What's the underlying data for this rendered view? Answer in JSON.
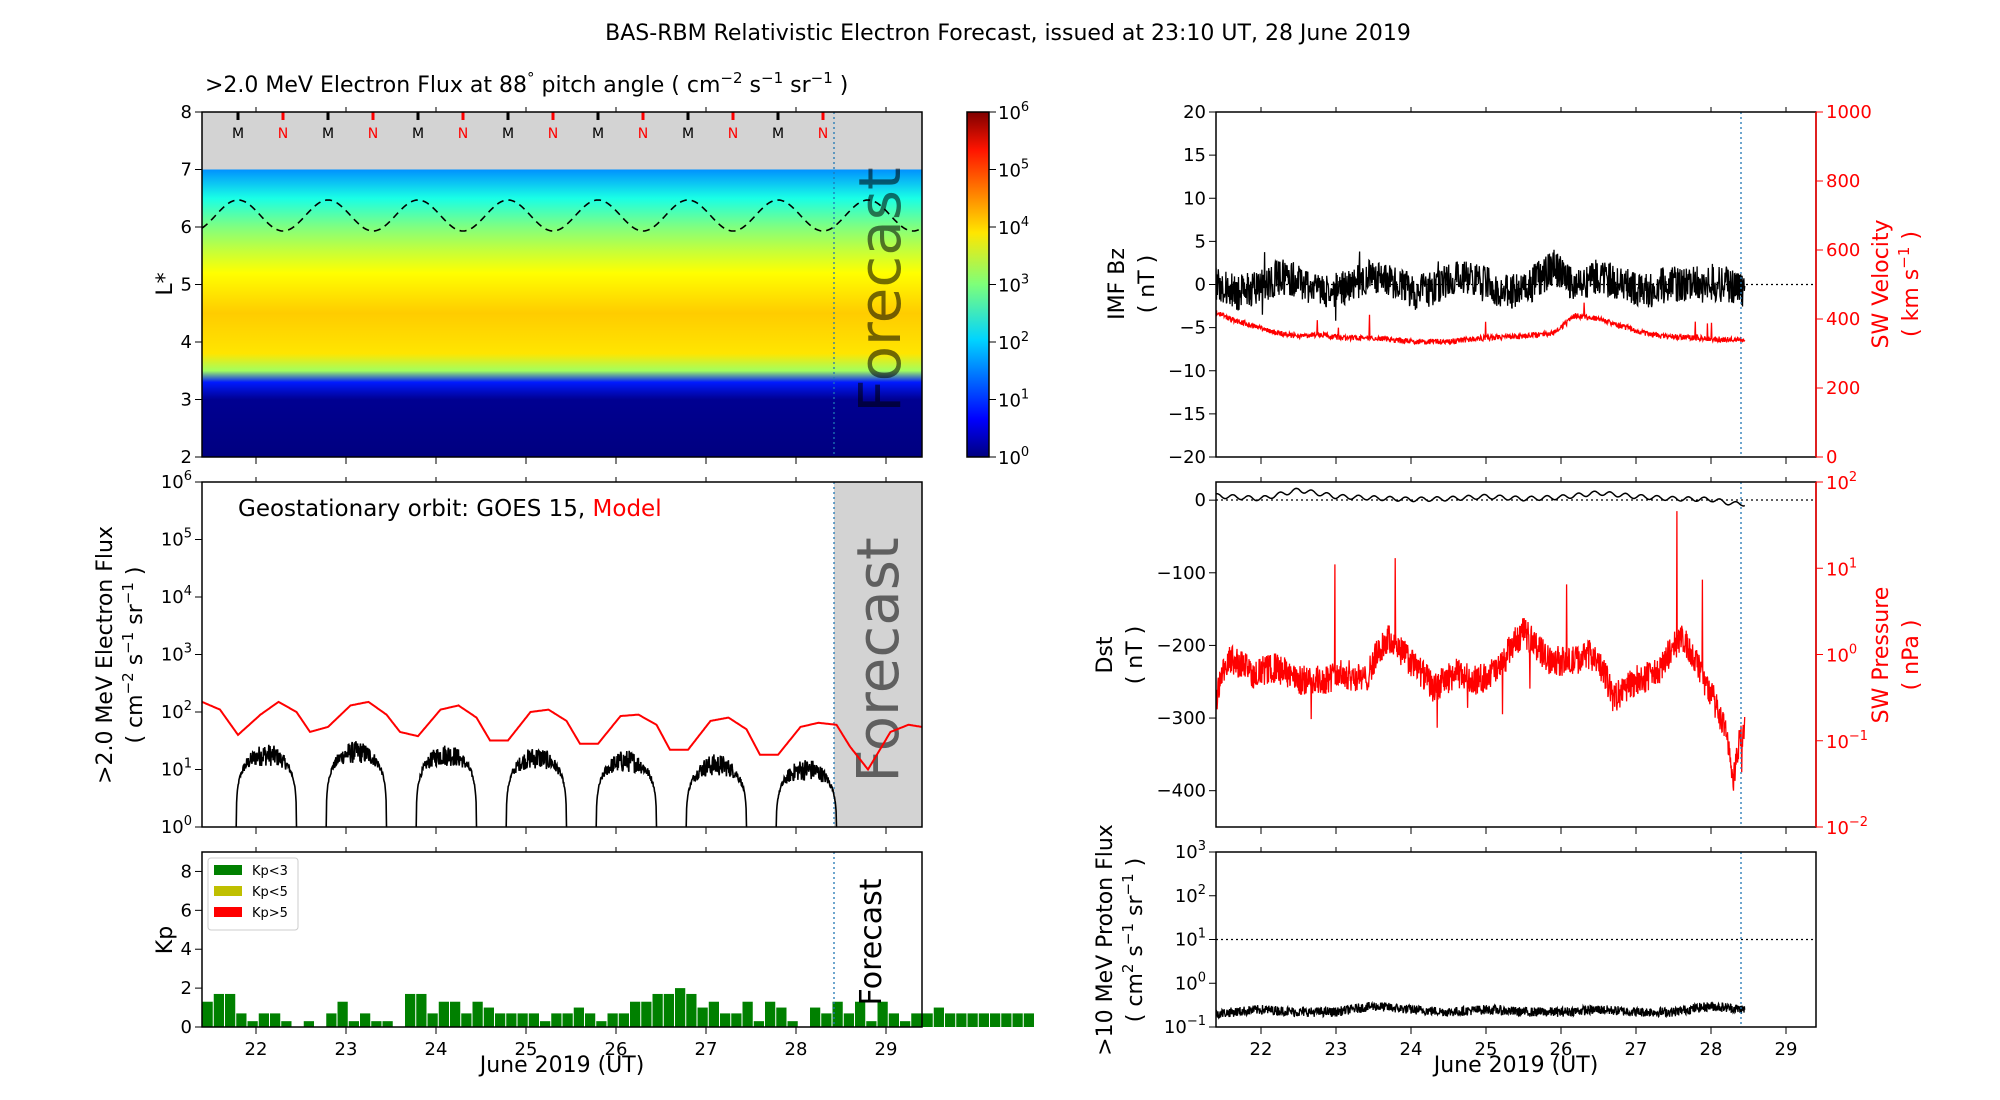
{
  "figure_title": "BAS-RBM Relativistic Electron Forecast, issued at 23:10 UT, 28 June 2019",
  "colors": {
    "forecast_shade": "#d3d3d3",
    "model": "#ff0000",
    "observed": "#000000",
    "kp_lt3": "#008000",
    "kp_lt5": "#bfbf00",
    "kp_gt5": "#ff0000",
    "forecast_line": "#1f77b4",
    "forecast_text": "#cfcfcf"
  },
  "icons": [
    "color-scale-icon",
    "legend-swatch-icon"
  ],
  "panels": {
    "heatmap": {
      "title_parts": [
        ">2.0 MeV Electron Flux at 88",
        "°",
        " pitch angle ( cm",
        "−2",
        " s",
        "−1",
        " sr",
        "−1",
        " )"
      ],
      "ylabel": "L*",
      "yticks": [
        "2",
        "3",
        "4",
        "5",
        "6",
        "7",
        "8"
      ],
      "forecast_label": "Forecast",
      "mn_markers": [
        "M",
        "N",
        "M",
        "N",
        "M",
        "N",
        "M",
        "N",
        "M",
        "N",
        "M",
        "N",
        "M",
        "N"
      ],
      "colorbar": {
        "tick_base": [
          "10",
          "10",
          "10",
          "10",
          "10",
          "10",
          "10"
        ],
        "tick_exp": [
          "0",
          "1",
          "2",
          "3",
          "4",
          "5",
          "6"
        ]
      }
    },
    "geo": {
      "annotation_prefix": "Geostationary orbit:   GOES 15,  ",
      "annotation_model": "Model",
      "ylabel_line1": ">2.0 MeV Electron Flux",
      "ylabel_line2_parts": [
        "( cm",
        "−2",
        " s",
        "−1",
        " sr",
        "−1",
        " )"
      ],
      "ytick_base": [
        "10",
        "10",
        "10",
        "10",
        "10",
        "10",
        "10"
      ],
      "ytick_exp": [
        "0",
        "1",
        "2",
        "3",
        "4",
        "5",
        "6"
      ],
      "forecast_label": "Forecast"
    },
    "kp": {
      "ylabel": "Kp",
      "yticks": [
        "0",
        "2",
        "4",
        "6",
        "8"
      ],
      "legend": [
        "Kp<3",
        "Kp<5",
        "Kp>5"
      ],
      "forecast_label": "Forecast"
    },
    "imf": {
      "ylabel_line1": "IMF Bz",
      "ylabel_line2": "( nT )",
      "yticks": [
        "−20",
        "−15",
        "−10",
        "−5",
        "0",
        "5",
        "10",
        "15",
        "20"
      ],
      "right_ylabel_line1": "SW Velocity",
      "right_ylabel_line2_parts": [
        "( km s",
        "−1",
        " )"
      ],
      "right_yticks": [
        "0",
        "200",
        "400",
        "600",
        "800",
        "1000"
      ]
    },
    "dst": {
      "ylabel_line1": "Dst",
      "ylabel_line2": "( nT )",
      "yticks": [
        "−400",
        "−300",
        "−200",
        "−100",
        "0"
      ],
      "right_ylabel_line1": "SW Pressure",
      "right_ylabel_line2": "( nPa )",
      "right_tick_base": [
        "10",
        "10",
        "10",
        "10",
        "10"
      ],
      "right_tick_exp": [
        "−2",
        "−1",
        "0",
        "1",
        "2"
      ]
    },
    "proton": {
      "ylabel_line1": ">10 MeV Proton Flux",
      "ylabel_line2_parts": [
        "( cm",
        "2",
        " s",
        "−1",
        " sr",
        "−1",
        " )"
      ],
      "ytick_base": [
        "10",
        "10",
        "10",
        "10",
        "10"
      ],
      "ytick_exp": [
        "−1",
        "0",
        "1",
        "2",
        "3"
      ]
    }
  },
  "xaxis": {
    "tick_labels": [
      "22",
      "23",
      "24",
      "25",
      "26",
      "27",
      "28",
      "29"
    ],
    "label": "June 2019 (UT)"
  },
  "chart_data": [
    {
      "type": "heatmap",
      "title": ">2.0 MeV Electron Flux at 88° pitch angle ( cm⁻² s⁻¹ sr⁻¹ )",
      "x_range_days": [
        21.4,
        29.4
      ],
      "ylim": [
        2,
        8
      ],
      "colorbar_log_range": [
        0,
        6
      ],
      "forecast_start_day": 28.46,
      "no_data_above_L": 7.0,
      "dashed_contour": {
        "mean_L": 6.2,
        "amplitude": 0.27,
        "period_days": 1.0
      },
      "mn_marker_days": [
        21.8,
        22.3,
        22.8,
        23.3,
        23.8,
        24.3,
        24.8,
        25.3,
        25.8,
        26.3,
        26.8,
        27.3,
        27.8,
        28.3
      ],
      "profile_L": [
        2.0,
        3.0,
        3.3,
        3.5,
        3.8,
        4.5,
        5.2,
        5.6,
        6.0,
        6.5,
        7.0
      ],
      "profile_log_flux": [
        -0.2,
        0.1,
        0.9,
        3.2,
        3.9,
        4.05,
        3.75,
        3.4,
        3.0,
        2.4,
        1.6
      ]
    },
    {
      "type": "line",
      "title": "Geostationary orbit: GOES 15, Model",
      "ylabel": ">2.0 MeV Electron Flux ( cm⁻² s⁻¹ sr⁻¹ )",
      "y_scale": "log",
      "ylim": [
        1,
        1000000
      ],
      "forecast_start_day": 28.46,
      "series": [
        {
          "name": "Model",
          "x": [
            21.4,
            21.6,
            21.8,
            22.05,
            22.25,
            22.45,
            22.6,
            22.8,
            23.05,
            23.25,
            23.45,
            23.6,
            23.8,
            24.05,
            24.25,
            24.45,
            24.6,
            24.8,
            25.05,
            25.25,
            25.45,
            25.6,
            25.8,
            26.05,
            26.25,
            26.45,
            26.6,
            26.8,
            27.05,
            27.25,
            27.45,
            27.6,
            27.8,
            28.05,
            28.25,
            28.45,
            28.6,
            28.8,
            29.05,
            29.25,
            29.4
          ],
          "y": [
            150,
            110,
            40,
            90,
            150,
            100,
            45,
            55,
            130,
            150,
            90,
            45,
            38,
            110,
            130,
            80,
            32,
            32,
            100,
            110,
            70,
            28,
            28,
            85,
            90,
            60,
            22,
            22,
            70,
            80,
            50,
            18,
            18,
            55,
            65,
            60,
            25,
            10,
            45,
            60,
            55
          ]
        },
        {
          "name": "GOES 15",
          "daily_arcs": [
            {
              "start": 21.78,
              "end": 22.45,
              "peak": 18
            },
            {
              "start": 22.78,
              "end": 23.45,
              "peak": 20
            },
            {
              "start": 23.78,
              "end": 24.45,
              "peak": 18
            },
            {
              "start": 24.78,
              "end": 25.45,
              "peak": 16
            },
            {
              "start": 25.78,
              "end": 26.45,
              "peak": 14
            },
            {
              "start": 26.78,
              "end": 27.45,
              "peak": 12
            },
            {
              "start": 27.78,
              "end": 28.45,
              "peak": 10
            }
          ]
        }
      ]
    },
    {
      "type": "bar",
      "ylabel": "Kp",
      "ylim": [
        0,
        9
      ],
      "legend": [
        "Kp<3",
        "Kp<5",
        "Kp>5"
      ],
      "bar_width_days": 0.125,
      "start_day": 21.4,
      "values": [
        1.3,
        1.7,
        1.7,
        0.7,
        0.3,
        0.7,
        0.7,
        0.3,
        0,
        0.3,
        0,
        0.7,
        1.3,
        0.3,
        0.7,
        0.3,
        0.3,
        0,
        1.7,
        1.7,
        0.7,
        1.3,
        1.3,
        0.7,
        1.3,
        1.0,
        0.7,
        0.7,
        0.7,
        0.7,
        0.3,
        0.7,
        0.7,
        1.0,
        0.7,
        0.3,
        0.7,
        0.7,
        1.3,
        1.3,
        1.7,
        1.7,
        2.0,
        1.7,
        1.0,
        1.3,
        0.7,
        0.7,
        1.3,
        0.3,
        1.3,
        1.0,
        0.3,
        0,
        1.0,
        0.7,
        1.3,
        0.7,
        1.3,
        0.3,
        1.3,
        0.7,
        0.3,
        0.7,
        0.7,
        1.0,
        0.7,
        0.7,
        0.7,
        0.7,
        0.7,
        0.7,
        0.7,
        0.7
      ]
    },
    {
      "type": "line",
      "ylabel": "IMF Bz ( nT )",
      "ylim": [
        -20,
        20
      ],
      "right_ylabel": "SW Velocity ( km s⁻¹ )",
      "right_ylim": [
        0,
        1000
      ],
      "forecast_start_day": 28.46,
      "series": [
        {
          "name": "IMF Bz",
          "x": [
            21.4,
            21.7,
            22.0,
            22.3,
            22.6,
            22.9,
            23.2,
            23.5,
            23.8,
            24.1,
            24.4,
            24.7,
            25.0,
            25.3,
            25.6,
            25.9,
            26.2,
            26.5,
            26.8,
            27.1,
            27.4,
            27.7,
            28.0,
            28.3,
            28.45
          ],
          "y": [
            0,
            -1,
            0,
            1,
            0,
            -1,
            0,
            1,
            0,
            -1,
            0,
            1,
            0,
            -1,
            0,
            2,
            0,
            1,
            0,
            -1,
            0,
            0,
            0,
            0,
            -1
          ]
        },
        {
          "name": "SW Velocity",
          "x": [
            21.4,
            21.6,
            21.9,
            22.2,
            22.5,
            22.8,
            23.1,
            23.5,
            24.0,
            24.5,
            25.0,
            25.5,
            25.9,
            26.2,
            26.5,
            26.8,
            27.1,
            27.4,
            27.8,
            28.2,
            28.45
          ],
          "y": [
            420,
            400,
            380,
            360,
            350,
            355,
            345,
            345,
            335,
            335,
            345,
            350,
            360,
            410,
            400,
            380,
            360,
            350,
            345,
            340,
            340
          ]
        }
      ]
    },
    {
      "type": "line",
      "ylabel": "Dst ( nT )",
      "ylim": [
        -450,
        25
      ],
      "right_ylabel": "SW Pressure ( nPa )",
      "right_y_scale": "log",
      "right_ylim": [
        0.01,
        100
      ],
      "forecast_start_day": 28.46,
      "series": [
        {
          "name": "Dst",
          "x": [
            21.4,
            22.0,
            22.5,
            23.0,
            23.5,
            24.0,
            24.5,
            25.0,
            25.5,
            26.0,
            26.5,
            27.0,
            27.5,
            28.0,
            28.3,
            28.45
          ],
          "y": [
            6,
            2,
            14,
            5,
            3,
            1,
            2,
            5,
            2,
            4,
            10,
            5,
            2,
            1,
            -5,
            -5
          ]
        },
        {
          "name": "SW Pressure",
          "x": [
            21.4,
            21.6,
            21.9,
            22.2,
            22.5,
            22.8,
            23.1,
            23.4,
            23.7,
            24.0,
            24.3,
            24.6,
            24.9,
            25.2,
            25.5,
            25.8,
            26.1,
            26.4,
            26.7,
            27.0,
            27.3,
            27.6,
            27.9,
            28.1,
            28.3,
            28.45
          ],
          "y": [
            0.3,
            0.9,
            0.6,
            0.7,
            0.5,
            0.5,
            0.6,
            0.5,
            1.5,
            0.8,
            0.4,
            0.6,
            0.5,
            0.7,
            1.8,
            0.9,
            0.8,
            1.0,
            0.3,
            0.5,
            0.6,
            1.5,
            0.5,
            0.2,
            0.03,
            0.15
          ]
        }
      ]
    },
    {
      "type": "line",
      "ylabel": ">10 MeV Proton Flux ( cm² s⁻¹ sr⁻¹ )",
      "y_scale": "log",
      "ylim": [
        0.1,
        1000
      ],
      "threshold": 10,
      "forecast_start_day": 28.46,
      "series": [
        {
          "name": "Proton flux",
          "x": [
            21.4,
            22.0,
            22.5,
            23.0,
            23.5,
            24.0,
            24.5,
            25.0,
            25.5,
            26.0,
            26.5,
            27.0,
            27.5,
            28.0,
            28.45
          ],
          "y": [
            0.2,
            0.25,
            0.22,
            0.22,
            0.3,
            0.25,
            0.22,
            0.25,
            0.22,
            0.22,
            0.25,
            0.22,
            0.22,
            0.3,
            0.25
          ]
        }
      ]
    }
  ]
}
